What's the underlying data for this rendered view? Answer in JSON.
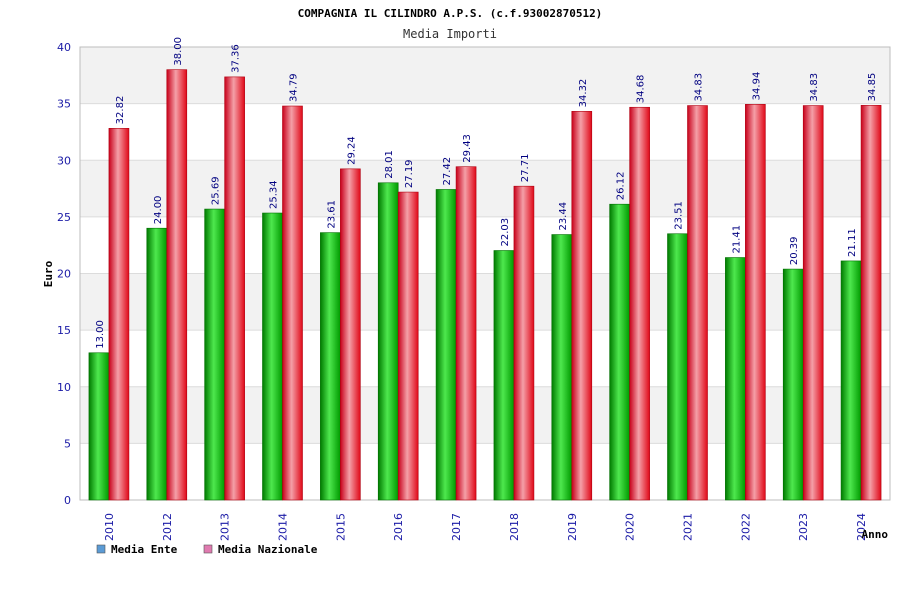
{
  "chart_data": {
    "type": "bar",
    "title": "COMPAGNIA IL CILINDRO A.P.S. (c.f.93002870512)",
    "subtitle": "Media Importi",
    "xlabel": "Anno",
    "ylabel": "Euro",
    "ylim": [
      0,
      40
    ],
    "yticks": [
      "0",
      "5",
      "10",
      "15",
      "20",
      "25",
      "30",
      "35",
      "40"
    ],
    "categories": [
      "2010",
      "2012",
      "2013",
      "2014",
      "2015",
      "2016",
      "2017",
      "2018",
      "2019",
      "2020",
      "2021",
      "2022",
      "2023",
      "2024"
    ],
    "series": [
      {
        "name": "Media Ente",
        "legend_swatch": "#5b9bd5",
        "color": "#00b400",
        "values": [
          13.0,
          24.0,
          25.69,
          25.34,
          23.61,
          28.01,
          27.42,
          22.03,
          23.44,
          26.12,
          23.51,
          21.41,
          20.39,
          21.11
        ],
        "labels": [
          "13.00",
          "24.00",
          "25.69",
          "25.34",
          "23.61",
          "28.01",
          "27.42",
          "22.03",
          "23.44",
          "26.12",
          "23.51",
          "21.41",
          "20.39",
          "21.11"
        ]
      },
      {
        "name": "Media Nazionale",
        "legend_swatch": "#e07ab0",
        "color": "#e8101e",
        "values": [
          32.82,
          38.0,
          37.36,
          34.79,
          29.24,
          27.19,
          29.43,
          27.71,
          34.32,
          34.68,
          34.83,
          34.94,
          34.83,
          34.85
        ],
        "labels": [
          "32.82",
          "38.00",
          "37.36",
          "34.79",
          "29.24",
          "27.19",
          "29.43",
          "27.71",
          "34.32",
          "34.68",
          "34.83",
          "34.94",
          "34.83",
          "34.85"
        ]
      }
    ],
    "grid": true,
    "legend_position": "bottom-left",
    "colors": {
      "tick_label": "#1a1aa6",
      "value_label": "#000080",
      "band": "#f2f2f2",
      "grid": "#dcdcdc",
      "axis": "#bdbdbd"
    }
  }
}
